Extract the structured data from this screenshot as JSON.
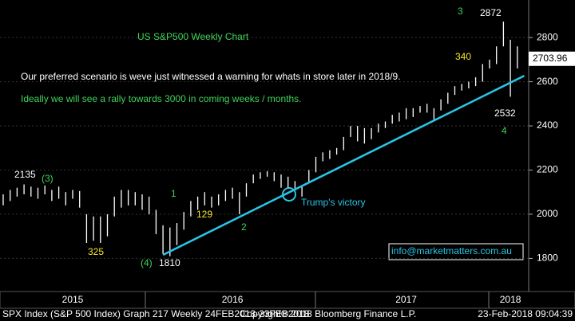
{
  "chart_data": {
    "type": "range",
    "title": "US S&P500 Weekly Chart",
    "annotations": [
      "Our preferred scenario is weve just witnessed a warning for whats in store later in 2018/9.",
      "Ideally we will see a rally towards 3000 in coming weeks / months.",
      "2135",
      "(3)",
      "325",
      "(4)",
      "1810",
      "1",
      "129",
      "2",
      "Trump's victory",
      "3",
      "2872",
      "340",
      "2532",
      "4",
      "info@marketmatters.com.au"
    ],
    "footer": [
      "SPX Index (S&P 500 Index) Graph 217  Weekly 24FEB2013-23FEB2018",
      "Copyright© 2018 Bloomberg Finance L.P.",
      "23-Feb-2018 09:04:39"
    ],
    "categories": [
      null,
      null,
      null,
      null,
      null,
      null,
      null,
      null,
      null,
      null,
      "2015",
      null,
      null,
      null,
      null,
      null,
      null,
      null,
      null,
      null,
      null,
      null,
      null,
      null,
      null,
      null,
      null,
      null,
      null,
      null,
      null,
      null,
      null,
      "2016",
      null,
      null,
      null,
      null,
      null,
      null,
      null,
      null,
      null,
      null,
      null,
      null,
      null,
      null,
      null,
      null,
      null,
      null,
      null,
      null,
      null,
      null,
      null,
      null,
      "2017",
      null,
      null,
      null,
      null,
      null,
      null,
      null,
      null,
      null,
      null,
      null,
      null,
      null,
      null,
      "2018",
      null
    ],
    "high": [
      2090,
      2110,
      2120,
      2135,
      2125,
      2120,
      2130,
      2110,
      2125,
      2100,
      2110,
      2105,
      2000,
      1990,
      1990,
      2000,
      2080,
      2110,
      2110,
      2100,
      2090,
      2080,
      2020,
      1950,
      1940,
      1960,
      2010,
      2060,
      2080,
      2100,
      2080,
      2090,
      2110,
      2120,
      2100,
      2140,
      2180,
      2190,
      2195,
      2190,
      2180,
      2170,
      2150,
      2130,
      2200,
      2260,
      2280,
      2290,
      2300,
      2350,
      2400,
      2400,
      2390,
      2390,
      2410,
      2420,
      2450,
      2460,
      2480,
      2480,
      2490,
      2500,
      2480,
      2520,
      2550,
      2580,
      2590,
      2600,
      2620,
      2680,
      2700,
      2760,
      2872,
      2790,
      2760
    ],
    "low": [
      2040,
      2060,
      2080,
      2090,
      2080,
      2070,
      2090,
      2060,
      2070,
      2040,
      2070,
      2030,
      1870,
      1880,
      1870,
      1900,
      1990,
      2030,
      2040,
      2040,
      2020,
      2000,
      1910,
      1820,
      1810,
      1860,
      1930,
      1990,
      2020,
      2040,
      2030,
      2040,
      2060,
      2070,
      2000,
      2080,
      2140,
      2160,
      2170,
      2150,
      2120,
      2120,
      2110,
      2080,
      2140,
      2190,
      2240,
      2250,
      2270,
      2290,
      2350,
      2330,
      2320,
      2340,
      2370,
      2390,
      2410,
      2420,
      2430,
      2440,
      2460,
      2460,
      2420,
      2470,
      2500,
      2540,
      2560,
      2570,
      2580,
      2600,
      2660,
      2680,
      2760,
      2532,
      2660
    ],
    "color": "#ffffff",
    "trendline": {
      "x": [
        23,
        75
      ],
      "values": [
        1816,
        2627
      ],
      "color": "#29c5e6"
    },
    "last_price": 2703.96,
    "ylim": [
      1650,
      2970
    ],
    "yticks": [
      1800,
      2000,
      2200,
      2400,
      2600,
      2800
    ],
    "grid": true
  }
}
